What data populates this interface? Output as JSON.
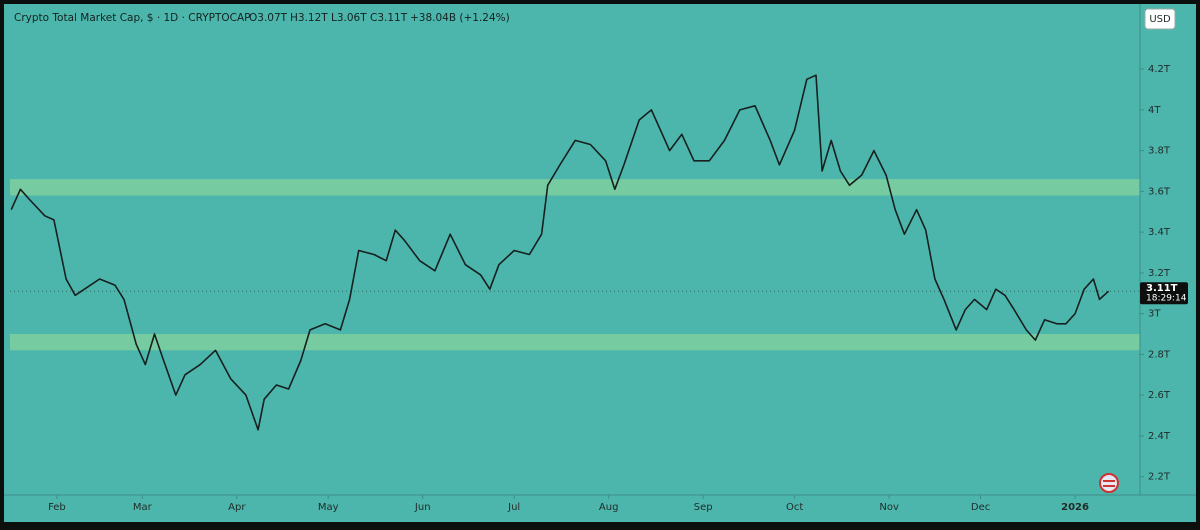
{
  "chart_data": {
    "type": "line",
    "title": "Crypto Total Market Cap, $ · 1D · CRYPTOCAP",
    "ohlc_header": {
      "open": "O3.07T",
      "high": "H3.12T",
      "low": "L3.06T",
      "close": "C3.11T",
      "change": "+38.04B (+1.24%)"
    },
    "currency": "USD",
    "last_price": {
      "value": 3.11,
      "label": "3.11T",
      "countdown": "18:29:14"
    },
    "color": "#16201f",
    "zones": [
      {
        "from": 3.58,
        "to": 3.66
      },
      {
        "from": 2.82,
        "to": 2.9
      }
    ],
    "x": [
      16,
      19,
      22,
      27,
      30,
      34,
      37,
      40,
      45,
      50,
      53,
      57,
      60,
      63,
      66,
      70,
      73,
      78,
      83,
      88,
      93,
      97,
      99,
      103,
      107,
      111,
      114,
      119,
      124,
      127,
      130,
      135,
      139,
      142,
      145,
      150,
      155,
      160,
      165,
      170,
      173,
      176,
      181,
      186,
      190,
      192,
      196,
      201,
      206,
      211,
      214,
      217,
      222,
      226,
      229,
      232,
      236,
      240,
      245,
      250,
      255,
      260,
      265,
      268,
      273,
      277,
      280,
      282,
      285,
      288,
      291,
      295,
      299,
      303,
      306,
      309,
      313,
      316,
      319,
      322,
      326,
      329,
      332,
      336,
      339,
      342,
      345,
      349,
      352,
      355,
      359,
      362,
      365,
      368,
      371,
      373,
      376
    ],
    "values": [
      3.51,
      3.61,
      3.56,
      3.48,
      3.46,
      3.17,
      3.09,
      3.12,
      3.17,
      3.14,
      3.07,
      2.85,
      2.75,
      2.9,
      2.77,
      2.6,
      2.7,
      2.75,
      2.82,
      2.68,
      2.6,
      2.43,
      2.58,
      2.65,
      2.63,
      2.77,
      2.92,
      2.95,
      2.92,
      3.07,
      3.31,
      3.29,
      3.26,
      3.41,
      3.36,
      3.26,
      3.21,
      3.39,
      3.24,
      3.19,
      3.12,
      3.24,
      3.31,
      3.29,
      3.39,
      3.63,
      3.73,
      3.85,
      3.83,
      3.75,
      3.61,
      3.73,
      3.95,
      4.0,
      3.9,
      3.8,
      3.88,
      3.75,
      3.75,
      3.85,
      4.0,
      4.02,
      3.85,
      3.73,
      3.9,
      4.15,
      4.17,
      3.7,
      3.85,
      3.7,
      3.63,
      3.68,
      3.8,
      3.68,
      3.51,
      3.39,
      3.51,
      3.41,
      3.17,
      3.07,
      2.92,
      3.02,
      3.07,
      3.02,
      3.12,
      3.09,
      3.02,
      2.92,
      2.87,
      2.97,
      2.95,
      2.95,
      3.0,
      3.12,
      3.17,
      3.07,
      3.11
    ],
    "xlim": [
      15.6,
      386.3
    ],
    "xticks": [
      {
        "value": 31,
        "label": "Feb"
      },
      {
        "value": 59,
        "label": "Mar"
      },
      {
        "value": 90,
        "label": "Apr"
      },
      {
        "value": 120,
        "label": "May"
      },
      {
        "value": 151,
        "label": "Jun"
      },
      {
        "value": 181,
        "label": "Jul"
      },
      {
        "value": 212,
        "label": "Aug"
      },
      {
        "value": 243,
        "label": "Sep"
      },
      {
        "value": 273,
        "label": "Oct"
      },
      {
        "value": 304,
        "label": "Nov"
      },
      {
        "value": 334,
        "label": "Dec"
      },
      {
        "value": 365,
        "label": "2026"
      }
    ],
    "ylim": [
      2.11,
      4.49
    ],
    "yticks": [
      {
        "value": 2.2,
        "label": "2.2T"
      },
      {
        "value": 2.4,
        "label": "2.4T"
      },
      {
        "value": 2.6,
        "label": "2.6T"
      },
      {
        "value": 2.8,
        "label": "2.8T"
      },
      {
        "value": 3,
        "label": "3T"
      },
      {
        "value": 3.2,
        "label": "3.2T"
      },
      {
        "value": 3.4,
        "label": "3.4T"
      },
      {
        "value": 3.6,
        "label": "3.6T"
      },
      {
        "value": 3.8,
        "label": "3.8T"
      },
      {
        "value": 4,
        "label": "4T"
      },
      {
        "value": 4.2,
        "label": "4.2T"
      }
    ]
  }
}
